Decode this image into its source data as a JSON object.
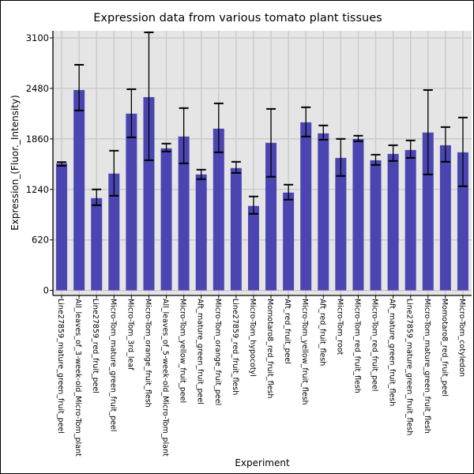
{
  "chart_data": {
    "type": "bar",
    "title": "Expression data from various tomato plant tissues",
    "xlabel": "Experiment",
    "ylabel": "Expression_(Fluor._Intensity)",
    "ylim": [
      -62,
      3187
    ],
    "yticks": [
      0,
      620,
      1240,
      1860,
      2480,
      3100
    ],
    "grid": true,
    "bar_color": "#4b45b2",
    "background": "#e5e5e5",
    "categories": [
      "Line27859_mature_green_fruit_peel",
      "All_leaves_of_3-week-old_Micro-Tom_plant",
      "Line27859_red_fruit_peel",
      "Micro-Tom_mature_green_fruit_peel",
      "Micro-Tom_3rd_leaf",
      "Micro-Tom_orange_fruit_flesh",
      "All_leaves_of_5-week-old_Micro-Tom_plant",
      "Micro-Tom_yellow_fruit_peel",
      "Aft_mature_green_fruit_peel",
      "Micro-Tom_orange_fruit_peel",
      "Line27859_red_fruit_flesh",
      "Micro-Tom_hypocotyl",
      "Momotaro8_red_fruit_flesh",
      "Aft_red_fruit_peel",
      "Micro-Tom_yellow_fruit_flesh",
      "Aft_red_fruit_flesh",
      "Micro-Tom_root",
      "Micro-Tom_red_fruit_flesh",
      "Micro-Tom_red_fruit_peel",
      "Aft_mature_green_fruit_flesh",
      "Line27859_mature_green_fruit_flesh",
      "Micro-Tom_mature_green_fruit_flesh",
      "Momotaro8_red_fruit_peel",
      "Micro-Tom_cotyledon"
    ],
    "values": [
      1560,
      2460,
      1133,
      1434,
      2170,
      2373,
      1744,
      1889,
      1424,
      1986,
      1502,
      1037,
      1812,
      1201,
      2063,
      1928,
      1627,
      1860,
      1598,
      1676,
      1724,
      1938,
      1782,
      1695
    ],
    "error_low": [
      1530,
      2209,
      1046,
      1162,
      1879,
      1598,
      1705,
      1560,
      1366,
      1695,
      1443,
      940,
      1395,
      1114,
      1889,
      1850,
      1405,
      1831,
      1540,
      1589,
      1627,
      1424,
      1579,
      1279
    ],
    "error_high": [
      1575,
      2770,
      1240,
      1715,
      2470,
      3168,
      1802,
      2238,
      1482,
      2296,
      1579,
      1153,
      2228,
      1298,
      2248,
      2025,
      1860,
      1899,
      1666,
      1782,
      1841,
      2460,
      2005,
      2122
    ]
  }
}
